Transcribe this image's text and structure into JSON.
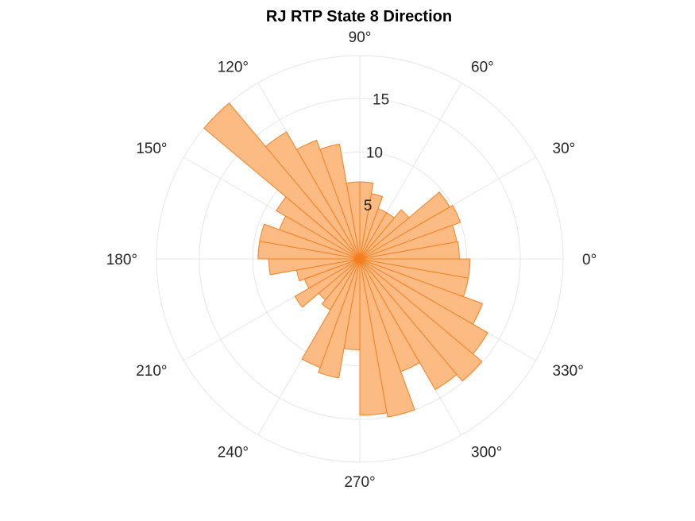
{
  "chart_data": {
    "type": "polar-histogram",
    "title": "RJ  RTP State 8 Direction",
    "theta_tick_labels": [
      "0°",
      "30°",
      "60°",
      "90°",
      "120°",
      "150°",
      "180°",
      "210°",
      "240°",
      "270°",
      "300°",
      "330°"
    ],
    "r_tick_labels": [
      "5",
      "10",
      "15"
    ],
    "rlim": [
      0,
      19
    ],
    "bin_width_deg": 10,
    "bin_centers_deg": [
      5,
      15,
      25,
      35,
      45,
      55,
      65,
      75,
      85,
      95,
      105,
      115,
      125,
      135,
      145,
      155,
      165,
      175,
      185,
      195,
      205,
      215,
      225,
      235,
      245,
      255,
      265,
      275,
      285,
      295,
      305,
      315,
      325,
      335,
      345,
      355
    ],
    "values": [
      9.3,
      9.2,
      10.0,
      9.7,
      6.0,
      5.0,
      5.0,
      6.2,
      7.2,
      7.2,
      10.9,
      11.8,
      13.7,
      19.0,
      9.0,
      8.0,
      9.5,
      9.5,
      8.5,
      6.0,
      5.5,
      7.0,
      5.0,
      5.5,
      10.8,
      11.3,
      8.5,
      14.6,
      15.0,
      11.2,
      14.1,
      14.9,
      13.8,
      12.2,
      10.3,
      10.3
    ],
    "colors": {
      "face": "#fdbb84",
      "edge": "#f57f20",
      "grid": "#e6e6e6"
    },
    "grid": true
  }
}
